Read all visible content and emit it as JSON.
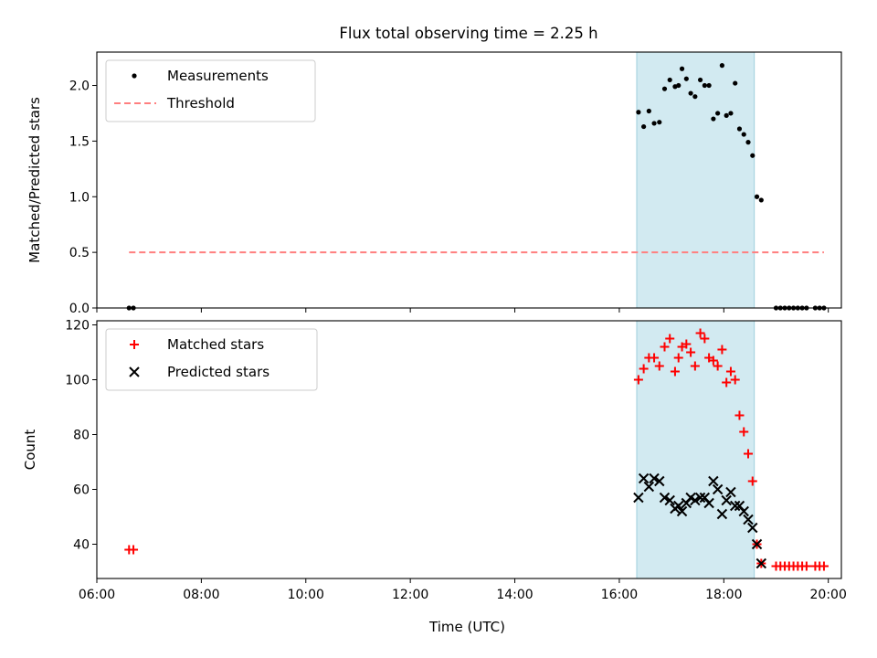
{
  "figure_title": "Flux total observing time = 2.25 h",
  "chart_data": [
    {
      "type": "scatter",
      "ylabel": "Matched/Predicted stars",
      "xlim": [
        "06:00",
        "20:15"
      ],
      "ylim": [
        0,
        2.3
      ],
      "yticks": [
        "0.0",
        "0.5",
        "1.0",
        "1.5",
        "2.0"
      ],
      "legend_position": "top-left",
      "shaded_interval": {
        "start": "16:20",
        "end": "18:35",
        "color": "#add8e6"
      },
      "series": [
        {
          "name": "Measurements",
          "marker": "dot",
          "color": "#000000",
          "points": [
            [
              "06:37",
              0
            ],
            [
              "06:42",
              0
            ],
            [
              "16:22",
              1.76
            ],
            [
              "16:28",
              1.63
            ],
            [
              "16:34",
              1.77
            ],
            [
              "16:40",
              1.66
            ],
            [
              "16:46",
              1.67
            ],
            [
              "16:52",
              1.97
            ],
            [
              "16:58",
              2.05
            ],
            [
              "17:04",
              1.99
            ],
            [
              "17:08",
              2.0
            ],
            [
              "17:12",
              2.15
            ],
            [
              "17:17",
              2.06
            ],
            [
              "17:22",
              1.93
            ],
            [
              "17:27",
              1.9
            ],
            [
              "17:33",
              2.05
            ],
            [
              "17:38",
              2.0
            ],
            [
              "17:43",
              2.0
            ],
            [
              "17:48",
              1.7
            ],
            [
              "17:53",
              1.75
            ],
            [
              "17:58",
              2.18
            ],
            [
              "18:03",
              1.73
            ],
            [
              "18:08",
              1.75
            ],
            [
              "18:13",
              2.02
            ],
            [
              "18:18",
              1.61
            ],
            [
              "18:23",
              1.56
            ],
            [
              "18:28",
              1.49
            ],
            [
              "18:33",
              1.37
            ],
            [
              "18:38",
              1.0
            ],
            [
              "18:43",
              0.97
            ],
            [
              "19:00",
              0
            ],
            [
              "19:05",
              0
            ],
            [
              "19:10",
              0
            ],
            [
              "19:15",
              0
            ],
            [
              "19:20",
              0
            ],
            [
              "19:25",
              0
            ],
            [
              "19:30",
              0
            ],
            [
              "19:35",
              0
            ],
            [
              "19:45",
              0
            ],
            [
              "19:50",
              0
            ],
            [
              "19:55",
              0
            ]
          ]
        },
        {
          "name": "Threshold",
          "marker": "dashed-line",
          "color": "#ff7f7f",
          "points": [
            [
              "06:37",
              0.5
            ],
            [
              "19:55",
              0.5
            ]
          ]
        }
      ]
    },
    {
      "type": "scatter",
      "xlabel": "Time (UTC)",
      "ylabel": "Count",
      "xlim": [
        "06:00",
        "20:15"
      ],
      "ylim": [
        27.5,
        121.5
      ],
      "yticks": [
        "40",
        "60",
        "80",
        "100",
        "120"
      ],
      "xticks": [
        "06:00",
        "08:00",
        "10:00",
        "12:00",
        "14:00",
        "16:00",
        "18:00",
        "20:00"
      ],
      "legend_position": "top-left",
      "shaded_interval": {
        "start": "16:20",
        "end": "18:35",
        "color": "#add8e6"
      },
      "series": [
        {
          "name": "Matched stars",
          "marker": "plus",
          "color": "#ff0000",
          "points": [
            [
              "06:37",
              38
            ],
            [
              "06:42",
              38
            ],
            [
              "16:22",
              100
            ],
            [
              "16:28",
              104
            ],
            [
              "16:34",
              108
            ],
            [
              "16:40",
              108
            ],
            [
              "16:46",
              105
            ],
            [
              "16:52",
              112
            ],
            [
              "16:58",
              115
            ],
            [
              "17:04",
              103
            ],
            [
              "17:08",
              108
            ],
            [
              "17:12",
              112
            ],
            [
              "17:17",
              113
            ],
            [
              "17:22",
              110
            ],
            [
              "17:27",
              105
            ],
            [
              "17:33",
              117
            ],
            [
              "17:38",
              115
            ],
            [
              "17:43",
              108
            ],
            [
              "17:48",
              107
            ],
            [
              "17:53",
              105
            ],
            [
              "17:58",
              111
            ],
            [
              "18:03",
              99
            ],
            [
              "18:08",
              103
            ],
            [
              "18:13",
              100
            ],
            [
              "18:18",
              87
            ],
            [
              "18:23",
              81
            ],
            [
              "18:28",
              73
            ],
            [
              "18:33",
              63
            ],
            [
              "18:38",
              40
            ],
            [
              "18:43",
              33
            ],
            [
              "19:00",
              32
            ],
            [
              "19:05",
              32
            ],
            [
              "19:10",
              32
            ],
            [
              "19:15",
              32
            ],
            [
              "19:20",
              32
            ],
            [
              "19:25",
              32
            ],
            [
              "19:30",
              32
            ],
            [
              "19:35",
              32
            ],
            [
              "19:45",
              32
            ],
            [
              "19:50",
              32
            ],
            [
              "19:55",
              32
            ]
          ]
        },
        {
          "name": "Predicted stars",
          "marker": "x",
          "color": "#000000",
          "points": [
            [
              "16:22",
              57
            ],
            [
              "16:28",
              64
            ],
            [
              "16:34",
              61
            ],
            [
              "16:40",
              64
            ],
            [
              "16:46",
              63
            ],
            [
              "16:52",
              57
            ],
            [
              "16:58",
              56
            ],
            [
              "17:04",
              53
            ],
            [
              "17:08",
              54
            ],
            [
              "17:12",
              52
            ],
            [
              "17:17",
              55
            ],
            [
              "17:22",
              57
            ],
            [
              "17:27",
              56
            ],
            [
              "17:33",
              57
            ],
            [
              "17:38",
              57
            ],
            [
              "17:43",
              55
            ],
            [
              "17:48",
              63
            ],
            [
              "17:53",
              60
            ],
            [
              "17:58",
              51
            ],
            [
              "18:03",
              56
            ],
            [
              "18:08",
              59
            ],
            [
              "18:13",
              54
            ],
            [
              "18:18",
              54
            ],
            [
              "18:23",
              52
            ],
            [
              "18:28",
              49
            ],
            [
              "18:33",
              46
            ],
            [
              "18:38",
              40
            ],
            [
              "18:43",
              33
            ]
          ]
        }
      ]
    }
  ]
}
